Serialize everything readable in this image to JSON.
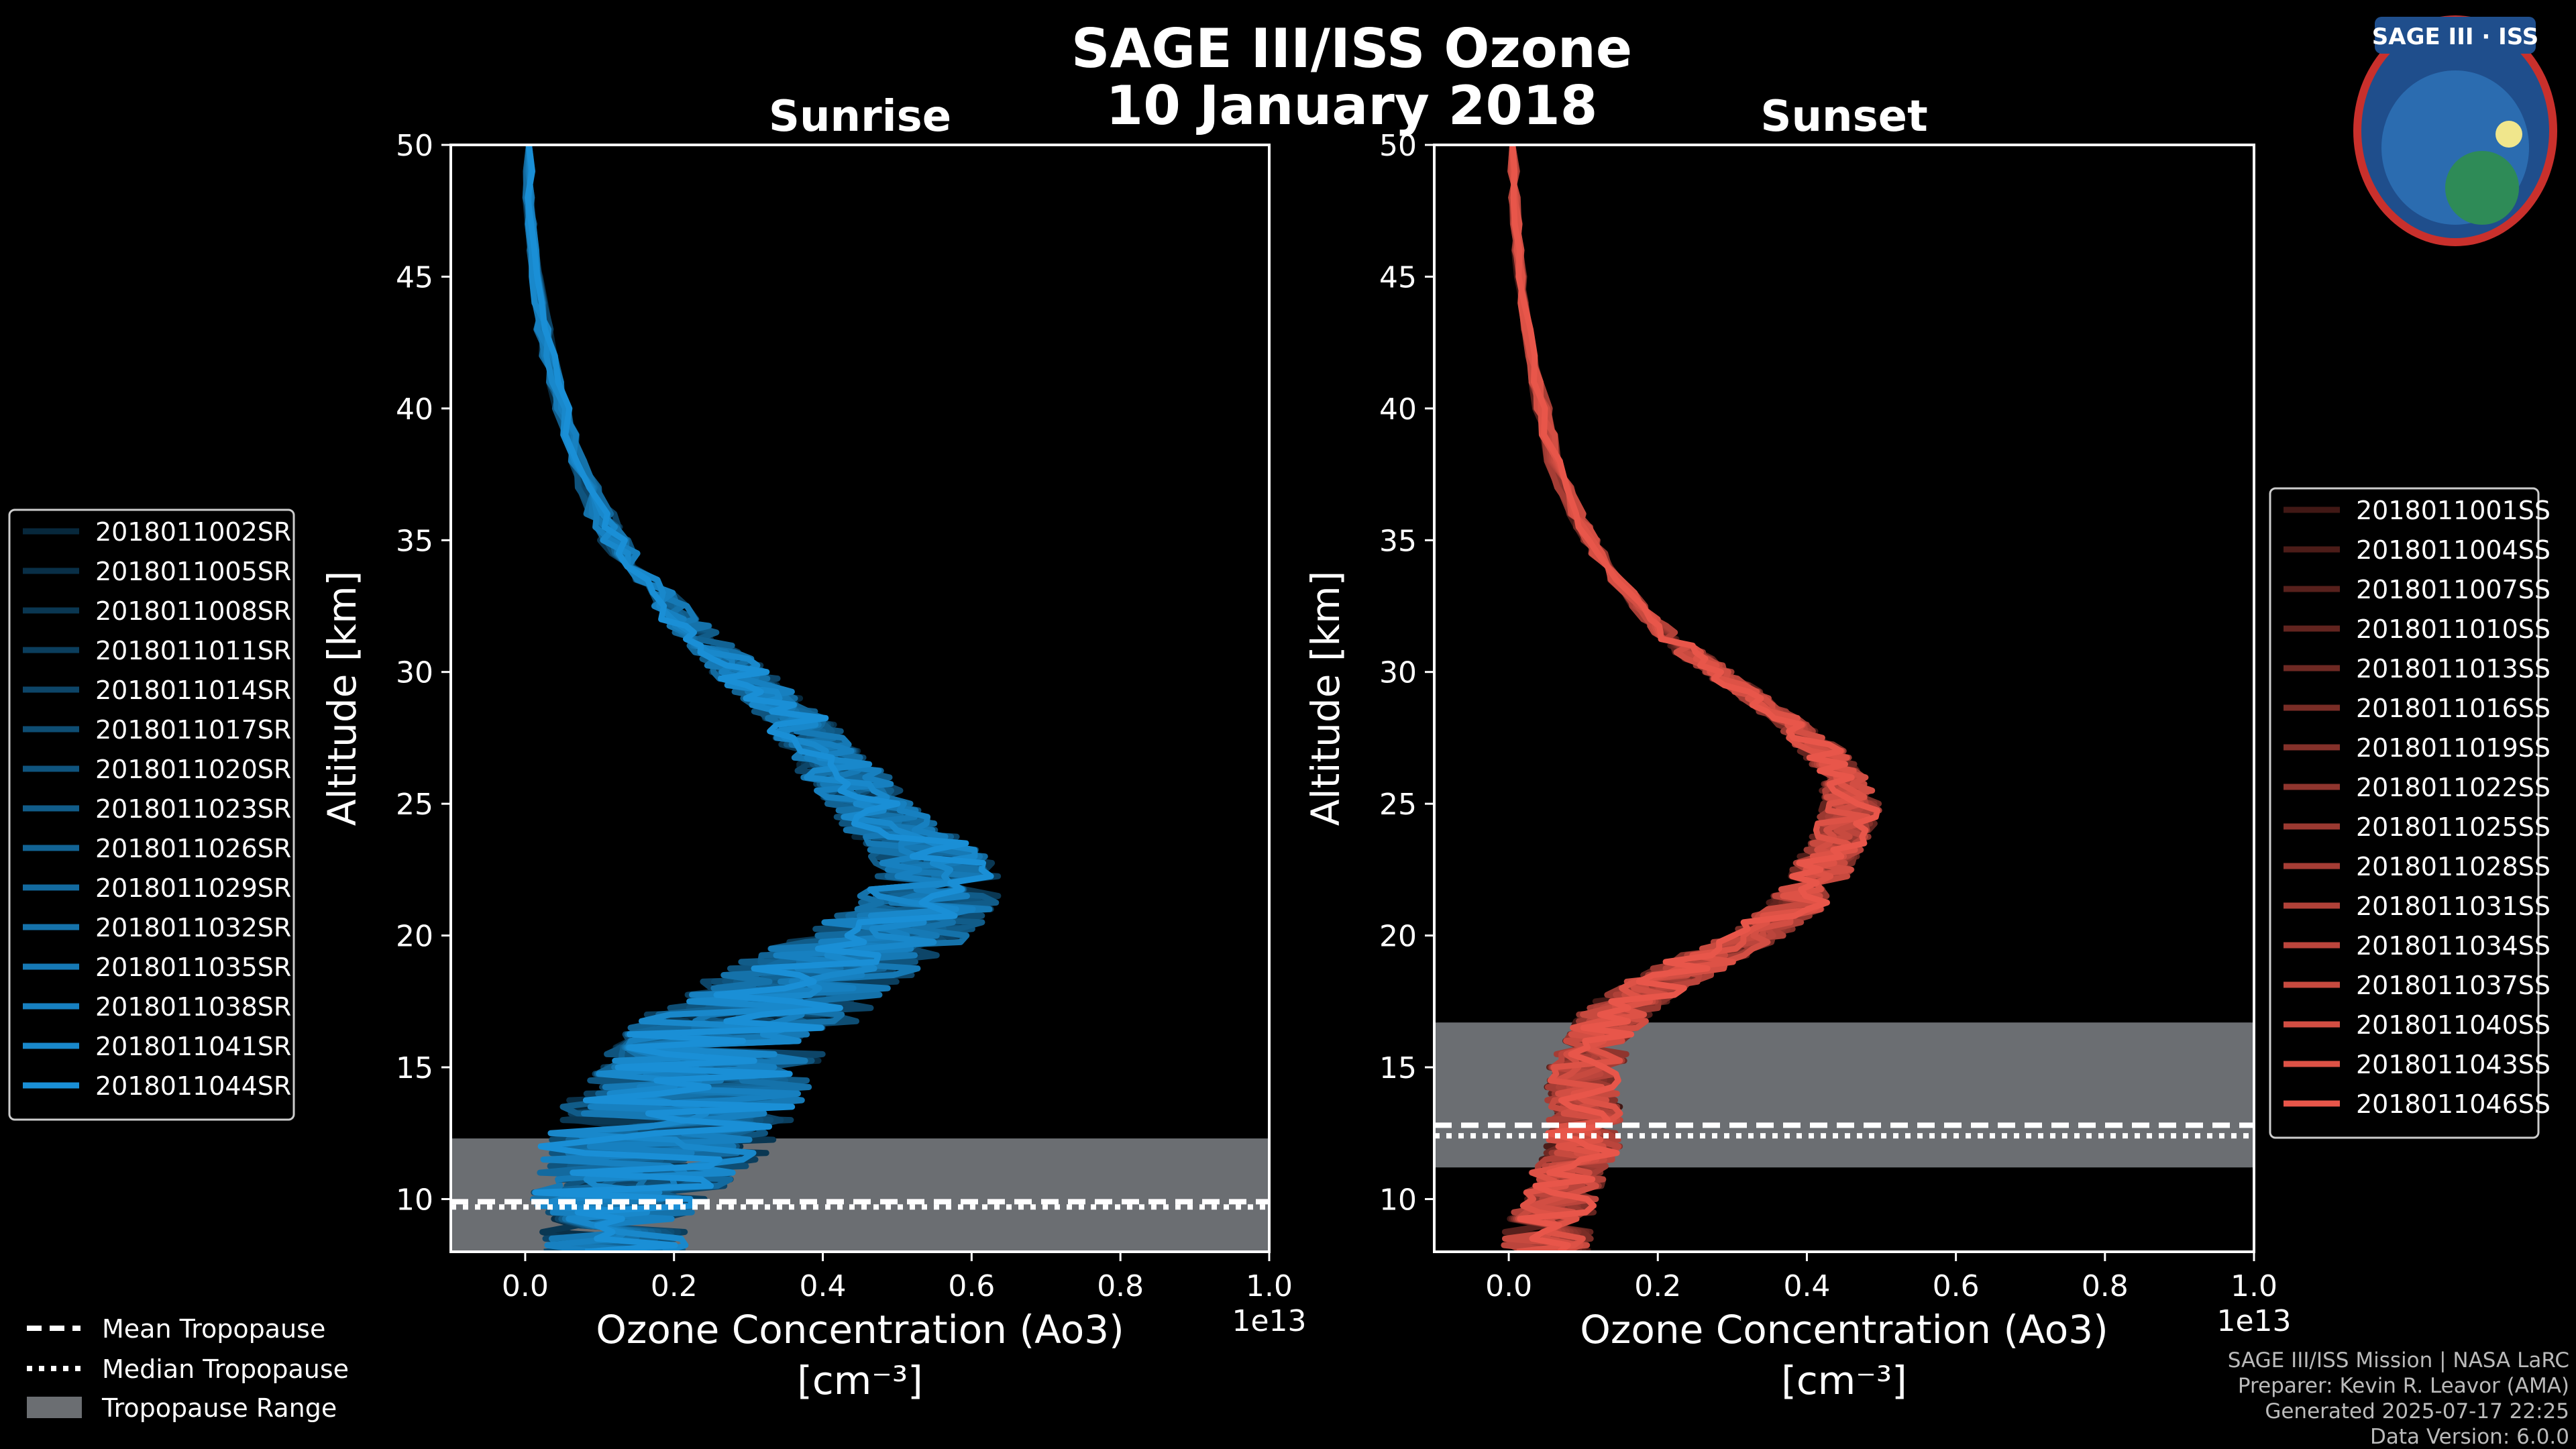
{
  "title": {
    "line1": "SAGE III/ISS Ozone",
    "line2": "10 January 2018"
  },
  "logo": {
    "text": "SAGE III · ISS",
    "icon": "mission-patch-icon"
  },
  "chart_data": [
    {
      "type": "line",
      "panel": "sunrise",
      "title": "Sunrise",
      "xlabel": "Ozone Concentration (Ao3)",
      "xunit": "[cm⁻³]",
      "ylabel": "Altitude [km]",
      "offset_label": "1e13",
      "xlim": [
        -0.1,
        1.0
      ],
      "ylim": [
        8,
        50
      ],
      "xticks": [
        "0.0",
        "0.2",
        "0.4",
        "0.6",
        "0.8",
        "1.0"
      ],
      "yticks": [
        "10",
        "15",
        "20",
        "25",
        "30",
        "35",
        "40",
        "45",
        "50"
      ],
      "tropopause": {
        "mean": 9.9,
        "median": 9.7,
        "range": [
          8,
          12.3
        ]
      },
      "base_color": "#1a8fd6",
      "legend": [
        "2018011002SR",
        "2018011005SR",
        "2018011008SR",
        "2018011011SR",
        "2018011014SR",
        "2018011017SR",
        "2018011020SR",
        "2018011023SR",
        "2018011026SR",
        "2018011029SR",
        "2018011032SR",
        "2018011035SR",
        "2018011038SR",
        "2018011041SR",
        "2018011044SR"
      ],
      "profile": {
        "altitude": [
          8,
          9,
          10,
          11,
          12,
          13,
          14,
          15,
          16,
          17,
          18,
          19,
          20,
          21,
          22,
          23,
          24,
          25,
          26,
          27,
          28,
          29,
          30,
          31,
          32,
          33,
          34,
          35,
          36,
          38,
          40,
          42,
          44,
          46,
          48,
          50
        ],
        "mean_value": [
          0.12,
          0.12,
          0.13,
          0.15,
          0.18,
          0.2,
          0.22,
          0.24,
          0.27,
          0.31,
          0.36,
          0.42,
          0.48,
          0.53,
          0.56,
          0.54,
          0.5,
          0.46,
          0.43,
          0.4,
          0.37,
          0.33,
          0.29,
          0.25,
          0.21,
          0.18,
          0.15,
          0.12,
          0.1,
          0.07,
          0.05,
          0.03,
          0.02,
          0.01,
          0.005,
          0.005
        ],
        "spread": [
          0.1,
          0.1,
          0.12,
          0.14,
          0.16,
          0.16,
          0.16,
          0.16,
          0.15,
          0.15,
          0.14,
          0.13,
          0.12,
          0.1,
          0.09,
          0.08,
          0.07,
          0.06,
          0.06,
          0.05,
          0.05,
          0.04,
          0.04,
          0.03,
          0.03,
          0.02,
          0.02,
          0.02,
          0.02,
          0.01,
          0.01,
          0.01,
          0.01,
          0.005,
          0.005,
          0.005
        ]
      }
    },
    {
      "type": "line",
      "panel": "sunset",
      "title": "Sunset",
      "xlabel": "Ozone Concentration (Ao3)",
      "xunit": "[cm⁻³]",
      "ylabel": "Altitude [km]",
      "offset_label": "1e13",
      "xlim": [
        -0.1,
        1.0
      ],
      "ylim": [
        8,
        50
      ],
      "xticks": [
        "0.0",
        "0.2",
        "0.4",
        "0.6",
        "0.8",
        "1.0"
      ],
      "yticks": [
        "10",
        "15",
        "20",
        "25",
        "30",
        "35",
        "40",
        "45",
        "50"
      ],
      "tropopause": {
        "mean": 12.8,
        "median": 12.4,
        "range": [
          11.2,
          16.7
        ]
      },
      "base_color": "#e8564a",
      "legend": [
        "2018011001SS",
        "2018011004SS",
        "2018011007SS",
        "2018011010SS",
        "2018011013SS",
        "2018011016SS",
        "2018011019SS",
        "2018011022SS",
        "2018011025SS",
        "2018011028SS",
        "2018011031SS",
        "2018011034SS",
        "2018011037SS",
        "2018011040SS",
        "2018011043SS",
        "2018011046SS"
      ],
      "profile": {
        "altitude": [
          8,
          9,
          10,
          11,
          12,
          13,
          14,
          15,
          16,
          17,
          18,
          19,
          20,
          21,
          22,
          23,
          24,
          25,
          26,
          27,
          28,
          29,
          30,
          31,
          32,
          33,
          34,
          35,
          36,
          38,
          40,
          42,
          44,
          46,
          48,
          50
        ],
        "mean_value": [
          0.05,
          0.05,
          0.07,
          0.08,
          0.1,
          0.1,
          0.1,
          0.1,
          0.12,
          0.14,
          0.19,
          0.26,
          0.33,
          0.38,
          0.41,
          0.43,
          0.45,
          0.46,
          0.45,
          0.42,
          0.38,
          0.33,
          0.28,
          0.23,
          0.19,
          0.16,
          0.13,
          0.11,
          0.09,
          0.06,
          0.045,
          0.03,
          0.02,
          0.012,
          0.008,
          0.005
        ],
        "spread": [
          0.06,
          0.06,
          0.05,
          0.05,
          0.05,
          0.05,
          0.05,
          0.05,
          0.05,
          0.05,
          0.05,
          0.05,
          0.04,
          0.04,
          0.04,
          0.04,
          0.04,
          0.04,
          0.03,
          0.03,
          0.02,
          0.02,
          0.02,
          0.02,
          0.01,
          0.01,
          0.01,
          0.01,
          0.01,
          0.01,
          0.01,
          0.005,
          0.005,
          0.005,
          0.005,
          0.005
        ]
      }
    }
  ],
  "bottom_legend": {
    "mean": "Mean Tropopause",
    "median": "Median Tropopause",
    "range": "Tropopause Range"
  },
  "credits": {
    "line1": "SAGE III/ISS Mission | NASA LaRC",
    "line2": "Preparer: Kevin R. Leavor (AMA)",
    "line3": "Generated 2025-07-17 22:25",
    "line4": "Data Version: 6.0.0"
  },
  "colors": {
    "background": "#000000",
    "tropo_band": "#6b6e72",
    "frame": "#ffffff"
  }
}
